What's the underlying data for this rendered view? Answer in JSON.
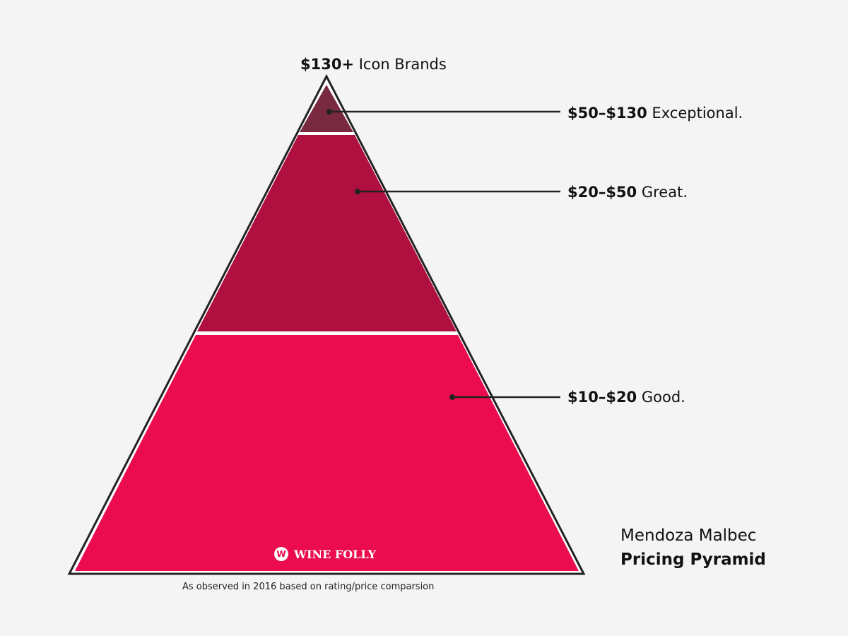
{
  "tiers": [
    {
      "price": "$130+",
      "label": "Icon Brands",
      "color": "#7a2a40"
    },
    {
      "price": "$50–$130",
      "label": "Exceptional.",
      "color": "#7a2a40"
    },
    {
      "price": "$20–$50",
      "label": "Great.",
      "color": "#b0103f"
    },
    {
      "price": "$10–$20",
      "label": "Good.",
      "color": "#ea0c4e"
    }
  ],
  "title": {
    "line1": "Mendoza Malbec",
    "line2": "Pricing Pyramid"
  },
  "note": "As observed in 2016 based on rating/price comparsion",
  "logo": "WINE FOLLY"
}
